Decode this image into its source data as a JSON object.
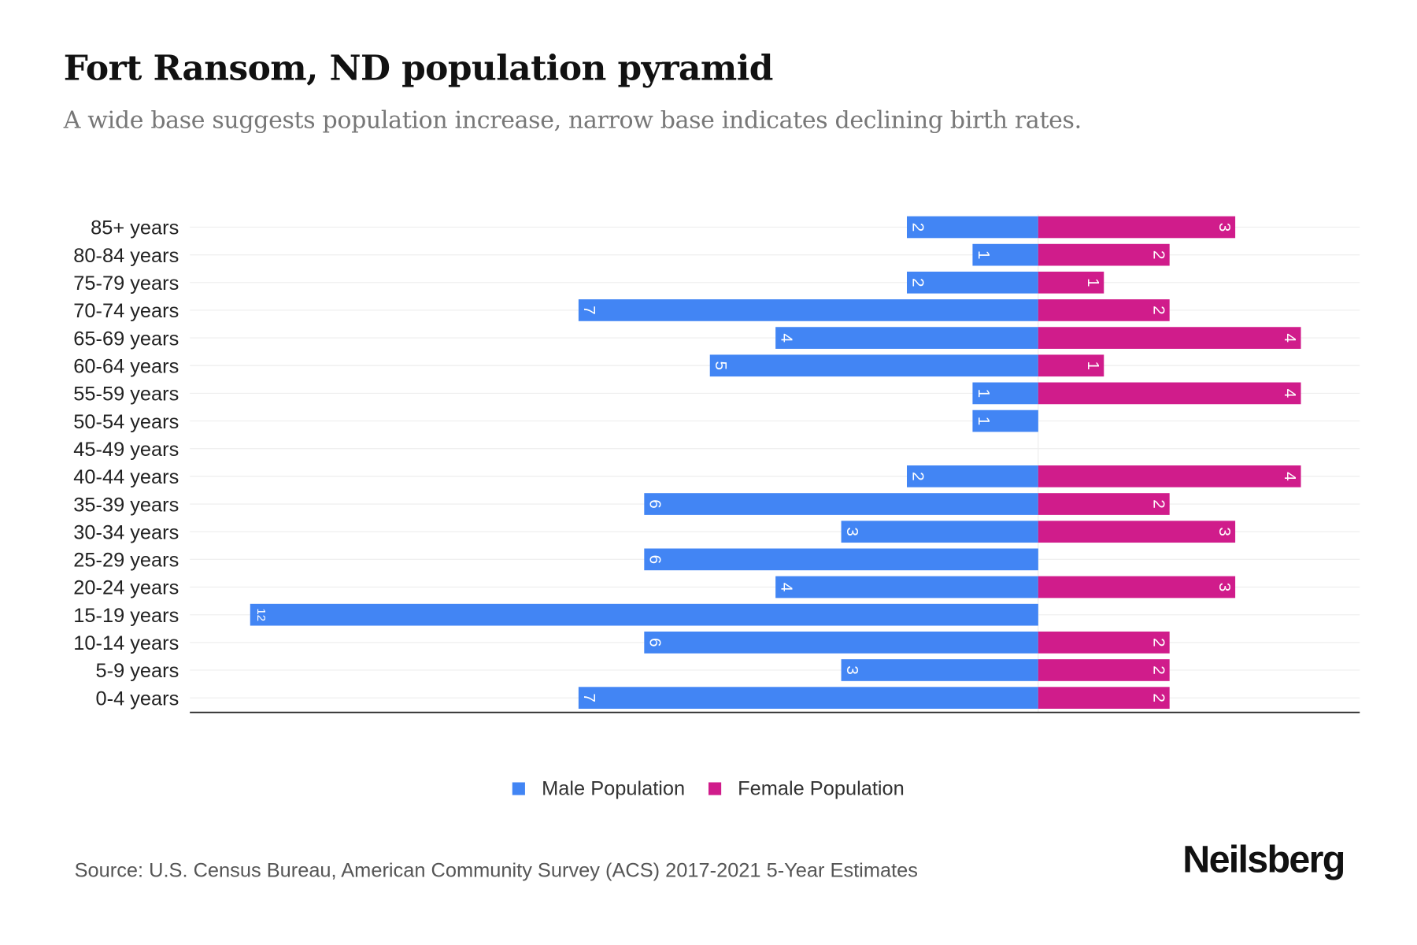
{
  "title": "Fort Ransom, ND population pyramid",
  "subtitle": "A wide base suggests population increase, narrow base indicates declining birth rates.",
  "source": "Source: U.S. Census Bureau, American Community Survey (ACS) 2017-2021 5-Year Estimates",
  "logo": "Neilsberg",
  "chart_data": {
    "type": "bar",
    "orientation": "horizontal-pyramid",
    "title": "Fort Ransom, ND population pyramid",
    "categories": [
      "85+ years",
      "80-84 years",
      "75-79 years",
      "70-74 years",
      "65-69 years",
      "60-64 years",
      "55-59 years",
      "50-54 years",
      "45-49 years",
      "40-44 years",
      "35-39 years",
      "30-34 years",
      "25-29 years",
      "20-24 years",
      "15-19 years",
      "10-14 years",
      "5-9 years",
      "0-4 years"
    ],
    "series": [
      {
        "name": "Male Population",
        "color": "#4285f4",
        "values": [
          2,
          1,
          2,
          7,
          4,
          5,
          1,
          1,
          0,
          2,
          6,
          3,
          6,
          4,
          12,
          6,
          3,
          7
        ]
      },
      {
        "name": "Female Population",
        "color": "#d01c8b",
        "values": [
          3,
          2,
          1,
          2,
          4,
          1,
          4,
          0,
          0,
          4,
          2,
          3,
          0,
          3,
          0,
          2,
          2,
          2
        ]
      }
    ],
    "xlim": [
      -12.9,
      4.9
    ],
    "grid": true,
    "legend_position": "bottom-center"
  }
}
